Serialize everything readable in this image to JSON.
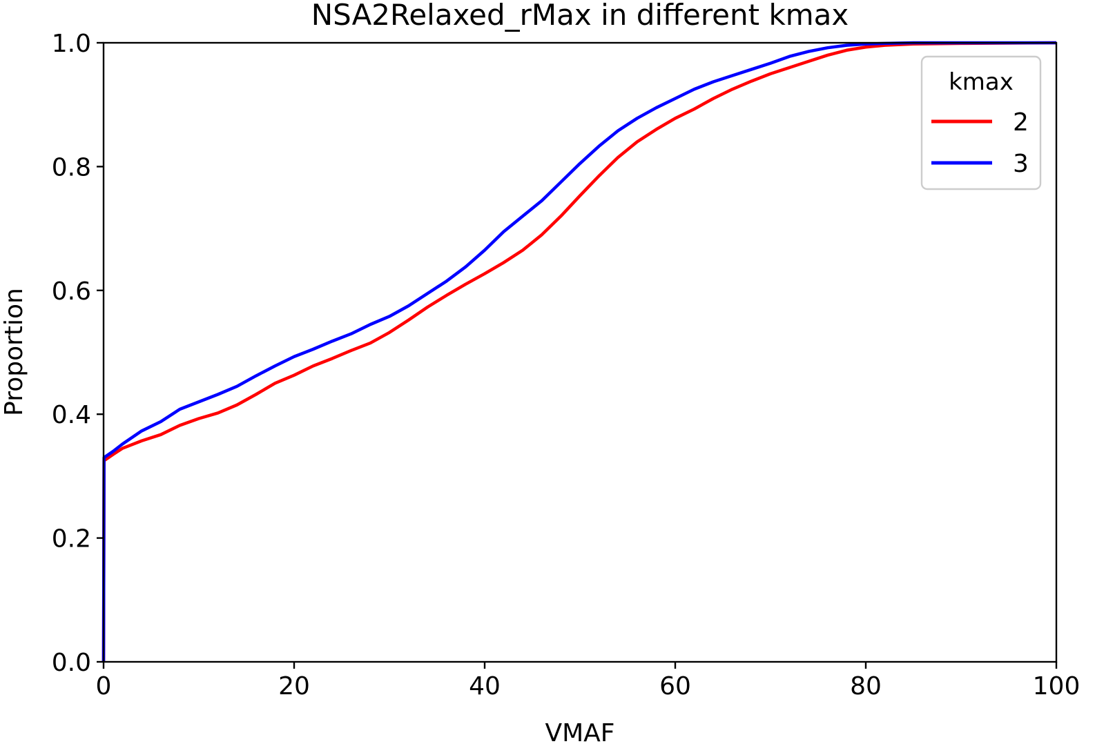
{
  "chart_data": {
    "type": "line",
    "title": "NSA2Relaxed_rMax in different kmax",
    "xlabel": "VMAF",
    "ylabel": "Proportion",
    "xlim": [
      0,
      100
    ],
    "ylim": [
      0,
      1
    ],
    "xticks": [
      0,
      20,
      40,
      60,
      80,
      100
    ],
    "yticks": [
      0.0,
      0.2,
      0.4,
      0.6,
      0.8,
      1.0
    ],
    "ytick_labels": [
      "0.0",
      "0.2",
      "0.4",
      "0.6",
      "0.8",
      "1.0"
    ],
    "grid": false,
    "legend": {
      "title": "kmax",
      "placement": "top-right"
    },
    "series": [
      {
        "name": "2",
        "color": "#ff0000",
        "points": [
          [
            0,
            0
          ],
          [
            0.05,
            0.325
          ],
          [
            1,
            0.335
          ],
          [
            2,
            0.345
          ],
          [
            4,
            0.357
          ],
          [
            6,
            0.367
          ],
          [
            8,
            0.382
          ],
          [
            10,
            0.393
          ],
          [
            12,
            0.402
          ],
          [
            14,
            0.415
          ],
          [
            16,
            0.432
          ],
          [
            18,
            0.45
          ],
          [
            20,
            0.463
          ],
          [
            22,
            0.478
          ],
          [
            24,
            0.49
          ],
          [
            26,
            0.503
          ],
          [
            28,
            0.515
          ],
          [
            30,
            0.532
          ],
          [
            32,
            0.552
          ],
          [
            34,
            0.573
          ],
          [
            36,
            0.592
          ],
          [
            38,
            0.61
          ],
          [
            40,
            0.627
          ],
          [
            42,
            0.645
          ],
          [
            44,
            0.665
          ],
          [
            46,
            0.69
          ],
          [
            48,
            0.72
          ],
          [
            50,
            0.753
          ],
          [
            52,
            0.785
          ],
          [
            54,
            0.815
          ],
          [
            56,
            0.84
          ],
          [
            58,
            0.86
          ],
          [
            60,
            0.878
          ],
          [
            62,
            0.893
          ],
          [
            64,
            0.91
          ],
          [
            66,
            0.925
          ],
          [
            68,
            0.938
          ],
          [
            70,
            0.95
          ],
          [
            72,
            0.96
          ],
          [
            74,
            0.97
          ],
          [
            76,
            0.98
          ],
          [
            78,
            0.988
          ],
          [
            80,
            0.993
          ],
          [
            82,
            0.996
          ],
          [
            85,
            0.998
          ],
          [
            90,
            0.999
          ],
          [
            100,
            1.0
          ]
        ]
      },
      {
        "name": "3",
        "color": "#0000ff",
        "points": [
          [
            0,
            0
          ],
          [
            0.05,
            0.33
          ],
          [
            1,
            0.34
          ],
          [
            2,
            0.352
          ],
          [
            4,
            0.373
          ],
          [
            6,
            0.388
          ],
          [
            8,
            0.408
          ],
          [
            10,
            0.42
          ],
          [
            12,
            0.432
          ],
          [
            14,
            0.445
          ],
          [
            16,
            0.462
          ],
          [
            18,
            0.478
          ],
          [
            20,
            0.493
          ],
          [
            22,
            0.505
          ],
          [
            24,
            0.518
          ],
          [
            26,
            0.53
          ],
          [
            28,
            0.545
          ],
          [
            30,
            0.558
          ],
          [
            32,
            0.575
          ],
          [
            34,
            0.595
          ],
          [
            36,
            0.615
          ],
          [
            38,
            0.638
          ],
          [
            40,
            0.665
          ],
          [
            42,
            0.695
          ],
          [
            44,
            0.72
          ],
          [
            46,
            0.745
          ],
          [
            48,
            0.775
          ],
          [
            50,
            0.805
          ],
          [
            52,
            0.833
          ],
          [
            54,
            0.858
          ],
          [
            56,
            0.878
          ],
          [
            58,
            0.895
          ],
          [
            60,
            0.91
          ],
          [
            62,
            0.925
          ],
          [
            64,
            0.937
          ],
          [
            66,
            0.947
          ],
          [
            68,
            0.957
          ],
          [
            70,
            0.967
          ],
          [
            72,
            0.978
          ],
          [
            74,
            0.986
          ],
          [
            76,
            0.992
          ],
          [
            78,
            0.996
          ],
          [
            80,
            0.998
          ],
          [
            82,
            0.999
          ],
          [
            85,
            1.0
          ],
          [
            100,
            1.0
          ]
        ]
      }
    ]
  }
}
